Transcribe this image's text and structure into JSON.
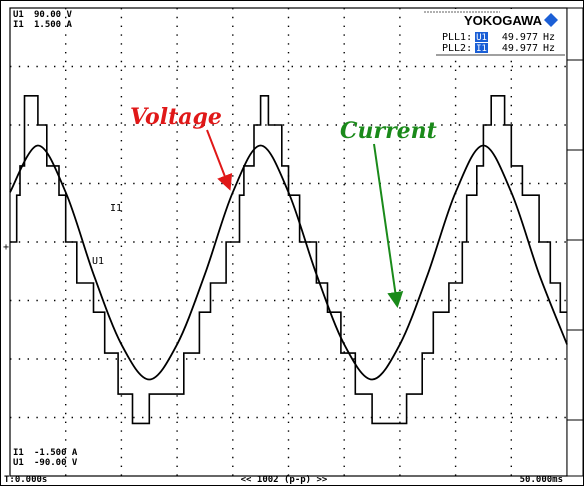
{
  "brand": {
    "name": "YOKOGAWA",
    "accent": "#1b5fd6"
  },
  "pll": [
    {
      "label": "PLL1:",
      "src": "U1",
      "value": "49.977",
      "unit": "Hz"
    },
    {
      "label": "PLL2:",
      "src": "I1",
      "value": "49.977",
      "unit": "Hz"
    }
  ],
  "top_scale": {
    "ch1": "U1",
    "ch1_value": "90.00 V",
    "ch2": "I1",
    "ch2_value": "1.500 A"
  },
  "bottom_scale": {
    "ch2": "I1",
    "ch2_value": "-1.500 A",
    "ch1": "U1",
    "ch1_value": "-90.00 V"
  },
  "footer": {
    "start": "T:0.000s",
    "center": "<< 1002 (p-p) >>",
    "end": "50.000ms"
  },
  "annotations": {
    "voltage": {
      "text": "Voltage",
      "color": "#e01818"
    },
    "current": {
      "text": "Current",
      "color": "#1a8a1a"
    }
  },
  "trace_labels": {
    "current": "I1",
    "voltage": "U1"
  },
  "chart_data": {
    "type": "line",
    "xlim_ms": [
      0,
      50
    ],
    "ylim_div": [
      -4,
      4
    ],
    "grid": true,
    "series": [
      {
        "name": "U1",
        "x": [
          0.0,
          0.6,
          0.6,
          0.9,
          0.9,
          1.3,
          1.3,
          2.5,
          2.5,
          3.3,
          3.3,
          4.4,
          4.4,
          5.0,
          5.0,
          6.0,
          6.0,
          7.5,
          7.5,
          8.5,
          8.5,
          9.7,
          9.7,
          11.0,
          11.0,
          12.5,
          12.5,
          15.6,
          15.6,
          17.0,
          17.0,
          18.0,
          18.0,
          19.4,
          19.4,
          20.6,
          20.6,
          21.0,
          21.0,
          21.9,
          21.9,
          22.5,
          22.5,
          23.2,
          23.2,
          24.4,
          24.4,
          25.0,
          25.0,
          26.0,
          26.0,
          27.5,
          27.5,
          28.5,
          28.5,
          29.7,
          29.7,
          31.0,
          31.0,
          32.5,
          32.5,
          35.6,
          35.6,
          37.0,
          37.0,
          38.0,
          38.0,
          39.4,
          39.4,
          40.6,
          40.6,
          41.0,
          41.0,
          41.9,
          41.9,
          42.5,
          42.5,
          43.2,
          43.2,
          44.4,
          44.4,
          45.0,
          45.0,
          46.0,
          46.0,
          47.5,
          47.5,
          48.5,
          48.5,
          49.4,
          49.4,
          50.0
        ],
        "y": [
          0.0,
          0.0,
          0.8,
          0.8,
          1.3,
          1.3,
          2.5,
          2.5,
          2.0,
          2.0,
          1.3,
          1.3,
          0.8,
          0.8,
          0.0,
          0.0,
          -0.7,
          -0.7,
          -1.2,
          -1.2,
          -1.9,
          -1.9,
          -2.6,
          -2.6,
          -3.1,
          -3.1,
          -2.6,
          -2.6,
          -1.9,
          -1.9,
          -1.2,
          -1.2,
          -0.7,
          -0.7,
          0.0,
          0.0,
          0.8,
          0.8,
          1.3,
          1.3,
          2.0,
          2.0,
          2.5,
          2.5,
          2.0,
          2.0,
          1.3,
          1.3,
          0.8,
          0.8,
          0.0,
          0.0,
          -0.7,
          -0.7,
          -1.2,
          -1.2,
          -1.9,
          -1.9,
          -2.6,
          -2.6,
          -3.1,
          -3.1,
          -2.6,
          -2.6,
          -1.9,
          -1.9,
          -1.2,
          -1.2,
          -0.7,
          -0.7,
          0.0,
          0.0,
          0.8,
          0.8,
          1.3,
          1.3,
          2.0,
          2.0,
          2.5,
          2.5,
          2.0,
          2.0,
          1.3,
          1.3,
          0.8,
          0.8,
          0.0,
          0.0,
          -0.7,
          -0.7,
          -1.2,
          -1.2
        ]
      },
      {
        "name": "I1",
        "x": [
          0.0,
          2.5,
          5.0,
          7.5,
          10.0,
          12.5,
          15.0,
          17.5,
          20.0,
          22.5,
          25.0,
          27.5,
          30.0,
          32.5,
          35.0,
          37.5,
          40.0,
          42.5,
          45.0,
          47.5,
          50.0
        ],
        "y": [
          0.85,
          1.65,
          0.85,
          -0.55,
          -1.75,
          -2.35,
          -1.75,
          -0.55,
          0.85,
          1.65,
          0.85,
          -0.55,
          -1.75,
          -2.35,
          -1.75,
          -0.55,
          0.85,
          1.65,
          0.85,
          -0.55,
          -1.75
        ]
      }
    ]
  }
}
